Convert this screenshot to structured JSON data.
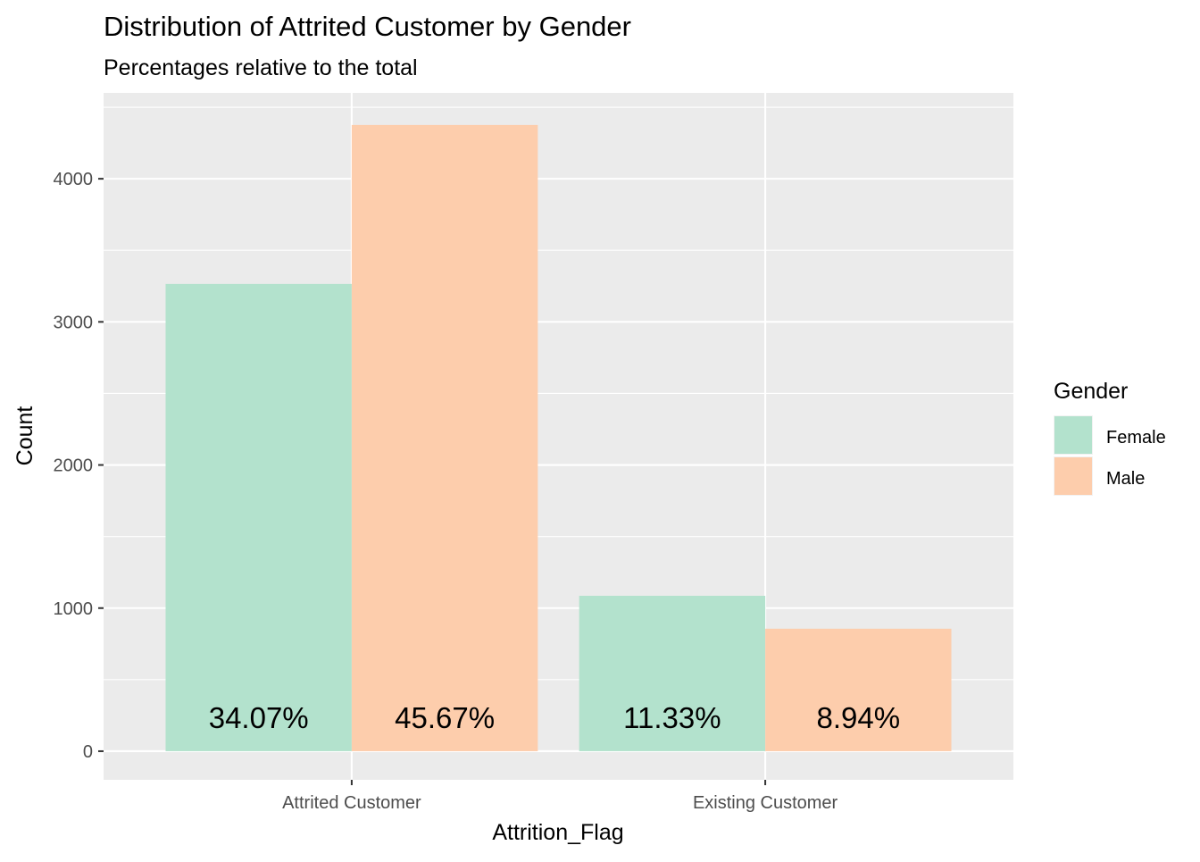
{
  "chart_data": {
    "type": "bar",
    "title": "Distribution of Attrited Customer by Gender",
    "subtitle": "Percentages relative to the total",
    "xlabel": "Attrition_Flag",
    "ylabel": "Count",
    "categories": [
      "Attrited Customer",
      "Existing Customer"
    ],
    "series": [
      {
        "name": "Female",
        "values": [
          3265,
          1086
        ],
        "labels": [
          "34.07%",
          "11.33%"
        ],
        "color": "#b3e2cd"
      },
      {
        "name": "Male",
        "values": [
          4376,
          856
        ],
        "labels": [
          "45.67%",
          "8.94%"
        ],
        "color": "#fdcdac"
      }
    ],
    "ylim": [
      -200,
      4600
    ],
    "yticks": [
      0,
      1000,
      2000,
      3000,
      4000
    ],
    "ytick_labels": [
      "0",
      "1000",
      "2000",
      "3000",
      "4000"
    ],
    "grid": true,
    "panel_background": "#ebebeb",
    "legend": {
      "title": "Gender",
      "position": "right"
    }
  }
}
